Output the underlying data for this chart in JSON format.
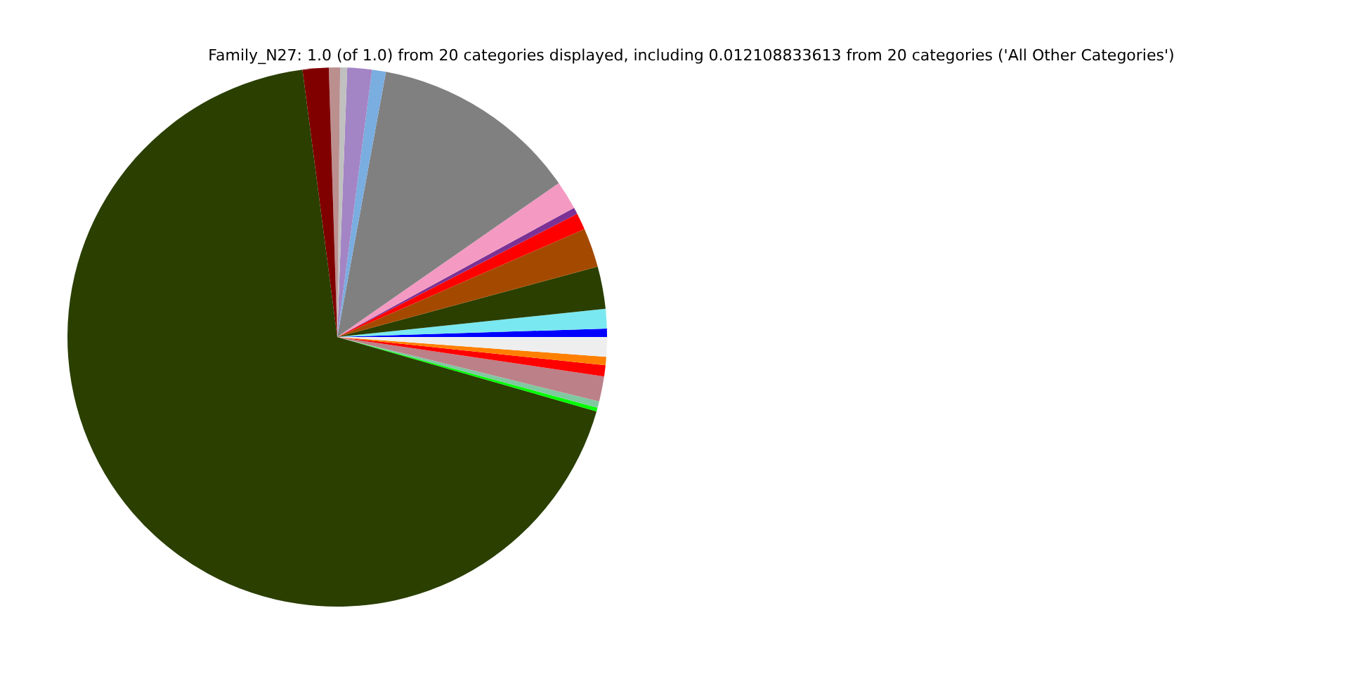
{
  "chart_data": {
    "type": "pie",
    "title": "Family_N27: 1.0 (of 1.0) from 20 categories displayed, including 0.012108833613 from 20 categories ('All Other Categories')",
    "categories": [
      null,
      null,
      null,
      null,
      null,
      null,
      null,
      null,
      null,
      null,
      null,
      null,
      null,
      null,
      null,
      null,
      null,
      null,
      null,
      null
    ],
    "values": [
      0.5,
      1.17,
      2.53,
      2.36,
      1.0,
      0.39,
      1.72,
      12.44,
      0.83,
      1.47,
      0.42,
      0.67,
      1.56,
      68.49,
      0.22,
      0.39,
      1.5,
      0.67,
      0.5,
      1.17
    ],
    "colors": [
      "#0000ff",
      "#7ae8f0",
      "#2a3f00",
      "#a44a00",
      "#ff0000",
      "#7b3294",
      "#f49ac2",
      "#808080",
      "#7aade0",
      "#a384c4",
      "#c0c0c0",
      "#bc8f8f",
      "#800000",
      "#2a3f00",
      "#00ff00",
      "#80c8a0",
      "#bc8088",
      "#ff0000",
      "#ff8000",
      "#eeeeee"
    ]
  }
}
